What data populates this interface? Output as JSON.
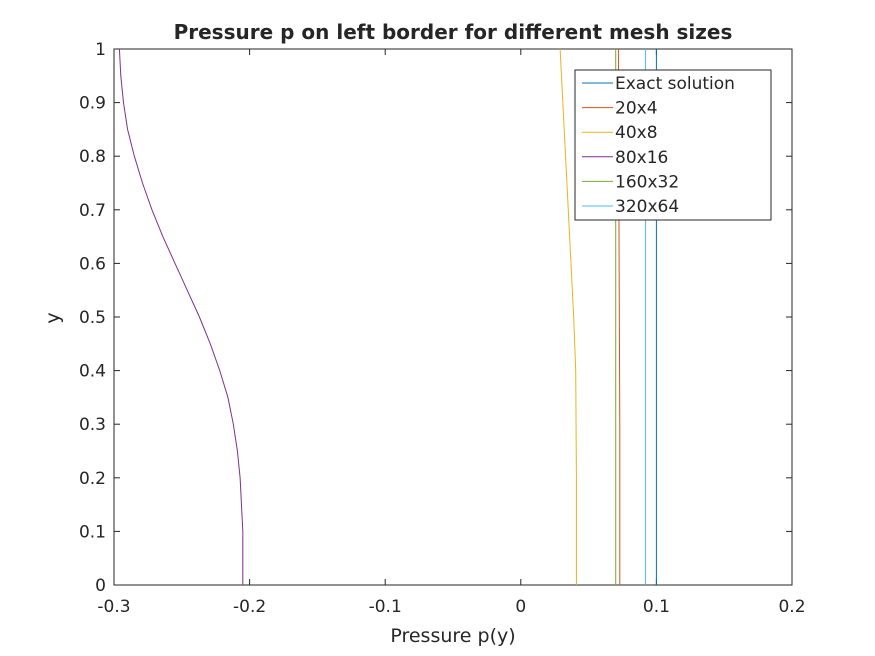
{
  "chart_data": {
    "type": "line",
    "title": "Pressure p on left border for different mesh sizes",
    "xlabel": "Pressure p(y)",
    "ylabel": "y",
    "xlim": [
      -0.3,
      0.2
    ],
    "ylim": [
      0,
      1
    ],
    "xticks": [
      -0.3,
      -0.2,
      -0.1,
      0,
      0.1,
      0.2
    ],
    "xtick_labels": [
      "-0.3",
      "-0.2",
      "-0.1",
      "0",
      "0.1",
      "0.2"
    ],
    "yticks": [
      0,
      0.1,
      0.2,
      0.3,
      0.4,
      0.5,
      0.6,
      0.7,
      0.8,
      0.9,
      1
    ],
    "ytick_labels": [
      "0",
      "0.1",
      "0.2",
      "0.3",
      "0.4",
      "0.5",
      "0.6",
      "0.7",
      "0.8",
      "0.9",
      "1"
    ],
    "grid": false,
    "legend_position": "top-right",
    "series": [
      {
        "name": "Exact solution",
        "color": "#0072BD",
        "points": [
          [
            0.1,
            0
          ],
          [
            0.1,
            1
          ]
        ]
      },
      {
        "name": "20x4",
        "color": "#D95319",
        "points": [
          [
            0.073,
            0
          ],
          [
            0.073,
            0.3
          ],
          [
            0.0725,
            0.6
          ],
          [
            0.072,
            1
          ]
        ]
      },
      {
        "name": "40x8",
        "color": "#EDB120",
        "points": [
          [
            0.041,
            0
          ],
          [
            0.041,
            0.2
          ],
          [
            0.0405,
            0.4
          ],
          [
            0.039,
            0.5
          ],
          [
            0.037,
            0.6
          ],
          [
            0.035,
            0.7
          ],
          [
            0.033,
            0.8
          ],
          [
            0.031,
            0.9
          ],
          [
            0.029,
            1
          ]
        ]
      },
      {
        "name": "80x16",
        "color": "#7E2F8E",
        "points": [
          [
            -0.205,
            0
          ],
          [
            -0.205,
            0.1
          ],
          [
            -0.206,
            0.15
          ],
          [
            -0.207,
            0.2
          ],
          [
            -0.209,
            0.25
          ],
          [
            -0.212,
            0.3
          ],
          [
            -0.216,
            0.35
          ],
          [
            -0.222,
            0.4
          ],
          [
            -0.229,
            0.45
          ],
          [
            -0.237,
            0.5
          ],
          [
            -0.246,
            0.55
          ],
          [
            -0.255,
            0.6
          ],
          [
            -0.264,
            0.65
          ],
          [
            -0.272,
            0.7
          ],
          [
            -0.279,
            0.75
          ],
          [
            -0.285,
            0.8
          ],
          [
            -0.29,
            0.85
          ],
          [
            -0.293,
            0.9
          ],
          [
            -0.295,
            0.95
          ],
          [
            -0.296,
            1
          ]
        ]
      },
      {
        "name": "160x32",
        "color": "#77AC30",
        "points": [
          [
            0.07,
            0
          ],
          [
            0.07,
            0.5
          ],
          [
            0.07,
            1
          ]
        ]
      },
      {
        "name": "320x64",
        "color": "#4DBEEE",
        "points": [
          [
            0.092,
            0
          ],
          [
            0.092,
            0.5
          ],
          [
            0.092,
            1
          ]
        ]
      }
    ]
  }
}
